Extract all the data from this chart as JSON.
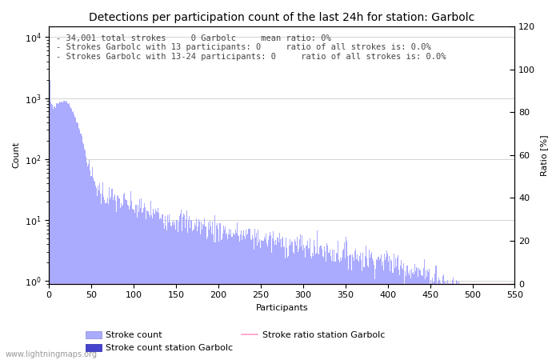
{
  "title": "Detections per participation count of the last 24h for station: Garbolc",
  "xlabel": "Participants",
  "ylabel_left": "Count",
  "ylabel_right": "Ratio [%]",
  "annotation_lines": [
    "34,001 total strokes     0 Garbolc     mean ratio: 0%",
    "Strokes Garbolc with 13 participants: 0     ratio of all strokes is: 0.0%",
    "Strokes Garbolc with 13-24 participants: 0     ratio of all strokes is: 0.0%"
  ],
  "xlim": [
    0,
    550
  ],
  "ylim_right": [
    0,
    120
  ],
  "right_yticks": [
    0,
    20,
    40,
    60,
    80,
    100,
    120
  ],
  "bar_color_light": "#aaaaff",
  "bar_color_dark": "#4444cc",
  "ratio_line_color": "#ff99cc",
  "watermark": "www.lightningmaps.org",
  "legend_labels": [
    "Stroke count",
    "Stroke count station Garbolc",
    "Stroke ratio station Garbolc"
  ],
  "xticks": [
    0,
    50,
    100,
    150,
    200,
    250,
    300,
    350,
    400,
    450,
    500,
    550
  ],
  "background_color": "#ffffff",
  "title_fontsize": 10,
  "axis_fontsize": 8,
  "annotation_fontsize": 7.5
}
